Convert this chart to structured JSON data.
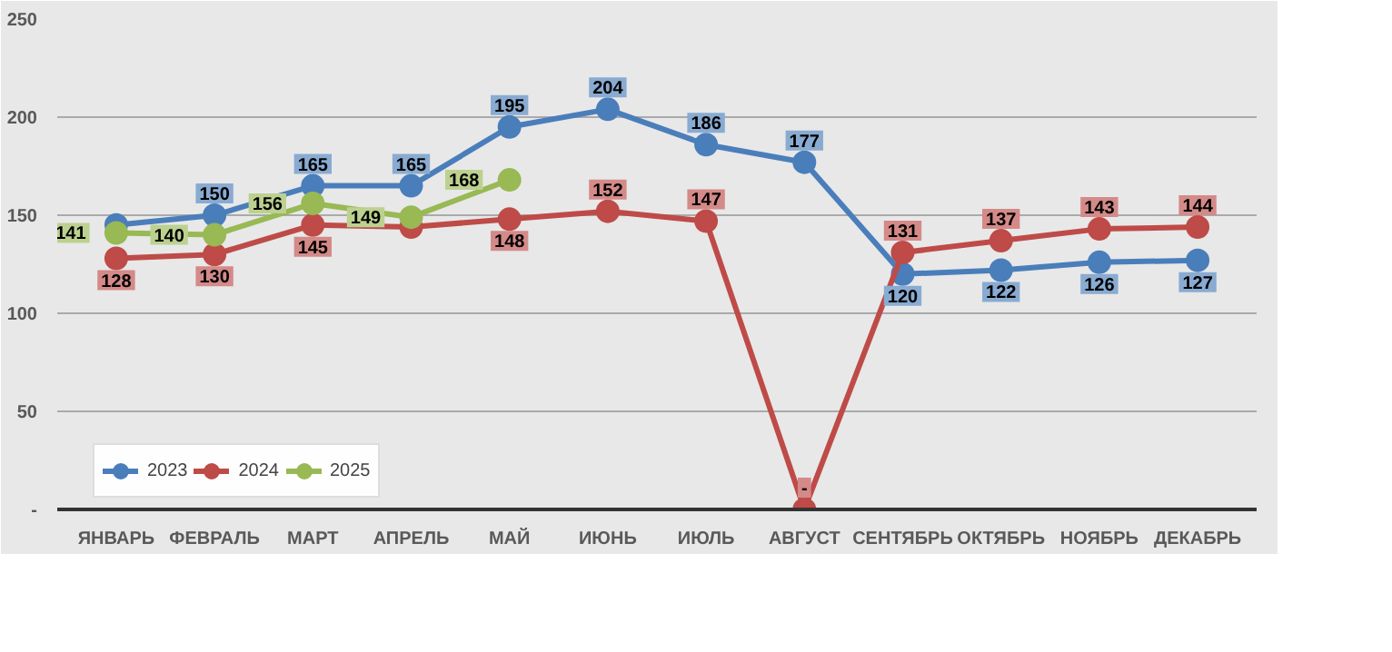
{
  "chart_data": {
    "type": "line",
    "categories": [
      "ЯНВАРЬ",
      "ФЕВРАЛЬ",
      "МАРТ",
      "АПРЕЛЬ",
      "МАЙ",
      "ИЮНЬ",
      "ИЮЛЬ",
      "АВГУСТ",
      "СЕНТЯБРЬ",
      "ОКТЯБРЬ",
      "НОЯБРЬ",
      "ДЕКАБРЬ"
    ],
    "series": [
      {
        "name": "2023",
        "color": "#4a7ebb",
        "values": [
          145,
          150,
          165,
          165,
          195,
          204,
          186,
          177,
          120,
          122,
          126,
          127
        ],
        "value_labels": [
          null,
          "150",
          "165",
          "165",
          "195",
          "204",
          "186",
          "177",
          "120",
          "122",
          "126",
          "127"
        ]
      },
      {
        "name": "2024",
        "color": "#be4b48",
        "values": [
          128,
          130,
          145,
          144,
          148,
          152,
          147,
          0,
          131,
          137,
          143,
          144
        ],
        "value_labels": [
          "128",
          "130",
          "145",
          null,
          "148",
          "152",
          "147",
          "-",
          "131",
          "137",
          "143",
          "144"
        ]
      },
      {
        "name": "2025",
        "color": "#98b954",
        "values": [
          141,
          140,
          156,
          149,
          168,
          null,
          null,
          null,
          null,
          null,
          null,
          null
        ],
        "value_labels": [
          "141",
          "140",
          "156",
          "149",
          "168",
          null,
          null,
          null,
          null,
          null,
          null,
          null
        ]
      }
    ],
    "ylim": [
      0,
      250
    ],
    "yticks": [
      {
        "value": 0,
        "label": "-"
      },
      50,
      100,
      150,
      200,
      250
    ],
    "grid": "y",
    "legend": "bottom",
    "marker": "circle",
    "line_style": "solid"
  }
}
